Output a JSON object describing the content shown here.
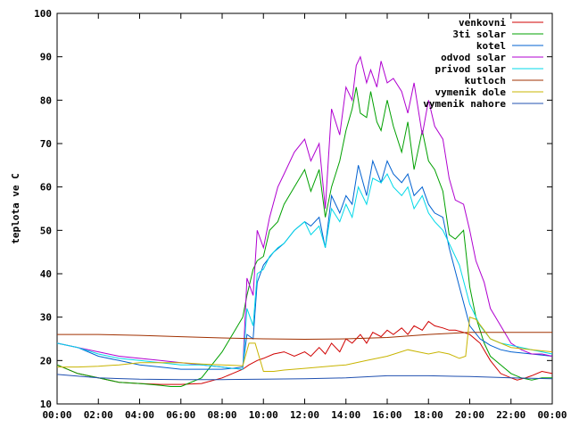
{
  "chart_data": {
    "type": "line",
    "ylabel": "teplota ve C",
    "xlabel": "",
    "ylim": [
      10,
      100
    ],
    "xlim": [
      0,
      24
    ],
    "x_ticks": [
      "00:00",
      "02:00",
      "04:00",
      "06:00",
      "08:00",
      "10:00",
      "12:00",
      "14:00",
      "16:00",
      "18:00",
      "20:00",
      "22:00",
      "00:00"
    ],
    "y_ticks": [
      10,
      20,
      30,
      40,
      50,
      60,
      70,
      80,
      90,
      100
    ],
    "grid": false,
    "legend_position": "top-right",
    "series": [
      {
        "name": "venkovni",
        "color": "#d00000",
        "x": [
          0,
          1,
          2,
          3,
          4,
          5,
          6,
          7,
          8,
          8.5,
          9,
          9.3,
          9.7,
          10,
          10.5,
          11,
          11.5,
          12,
          12.3,
          12.7,
          13,
          13.3,
          13.7,
          14,
          14.3,
          14.7,
          15,
          15.3,
          15.7,
          16,
          16.3,
          16.7,
          17,
          17.3,
          17.7,
          18,
          18.3,
          18.7,
          19,
          19.3,
          19.7,
          20,
          20.5,
          21,
          21.5,
          22,
          22.3,
          22.7,
          23,
          23.5,
          24
        ],
        "y": [
          19,
          17,
          16,
          15,
          14.7,
          14.5,
          14.5,
          14.7,
          16,
          17,
          18,
          19,
          20,
          20.5,
          21.5,
          22,
          21,
          22,
          21,
          23,
          21.5,
          24,
          22,
          25,
          24,
          26,
          24,
          26.5,
          25.5,
          27,
          26,
          27.5,
          26,
          28,
          27,
          29,
          28,
          27.5,
          27,
          27,
          26.5,
          26,
          24,
          20,
          17,
          16,
          15.5,
          16,
          16.5,
          17.5,
          17
        ]
      },
      {
        "name": "3ti solar",
        "color": "#00a000",
        "x": [
          0,
          1,
          2,
          3,
          4,
          5,
          5.5,
          6,
          7,
          8,
          8.5,
          9,
          9.2,
          9.5,
          9.7,
          10,
          10.3,
          10.7,
          11,
          11.5,
          12,
          12.3,
          12.7,
          13,
          13.3,
          13.7,
          14,
          14.3,
          14.5,
          14.7,
          15,
          15.2,
          15.5,
          15.7,
          16,
          16.3,
          16.7,
          17,
          17.3,
          17.7,
          18,
          18.3,
          18.7,
          19,
          19.3,
          19.7,
          20,
          20.3,
          20.7,
          21,
          21.5,
          22,
          22.5,
          23,
          23.5,
          24
        ],
        "y": [
          19,
          17,
          16,
          15,
          14.7,
          14.3,
          14,
          14,
          16,
          22,
          26,
          30,
          35,
          41,
          43,
          44,
          50,
          52,
          56,
          60,
          64,
          59,
          64,
          53,
          60,
          66,
          73,
          78,
          83,
          77,
          76,
          82,
          75,
          73,
          80,
          74,
          68,
          75,
          64,
          73,
          66,
          64,
          59,
          49,
          48,
          50,
          37,
          30,
          24,
          21,
          19,
          17,
          16,
          15.5,
          16,
          16
        ]
      },
      {
        "name": "kotel",
        "color": "#0060d0",
        "x": [
          0,
          1,
          2,
          3,
          4,
          5,
          6,
          7,
          8,
          8.5,
          9,
          9.2,
          9.5,
          9.7,
          10,
          10.5,
          11,
          11.5,
          12,
          12.3,
          12.7,
          13,
          13.3,
          13.7,
          14,
          14.3,
          14.6,
          15,
          15.3,
          15.7,
          16,
          16.3,
          16.7,
          17,
          17.3,
          17.7,
          18,
          18.3,
          18.7,
          19,
          19.5,
          20,
          20.5,
          21,
          21.5,
          22,
          23,
          24
        ],
        "y": [
          24,
          23,
          21,
          20,
          19,
          18.5,
          18,
          18,
          18,
          18.2,
          18.5,
          26,
          25,
          38,
          42,
          45,
          47,
          50,
          52,
          51,
          53,
          46,
          58,
          54,
          58,
          56,
          65,
          58,
          66,
          61,
          66,
          63,
          61,
          63,
          58,
          60,
          56,
          54,
          53,
          46,
          37,
          28,
          25,
          23.5,
          22.5,
          22,
          21.5,
          21
        ]
      },
      {
        "name": "odvod solar",
        "color": "#b000d0",
        "x": [
          0,
          1,
          2,
          3,
          4,
          5,
          6,
          7,
          8,
          8.5,
          9,
          9.2,
          9.5,
          9.7,
          10,
          10.3,
          10.7,
          11,
          11.5,
          12,
          12.3,
          12.7,
          13,
          13.3,
          13.7,
          14,
          14.3,
          14.5,
          14.7,
          15,
          15.2,
          15.5,
          15.7,
          16,
          16.3,
          16.7,
          17,
          17.3,
          17.7,
          18,
          18.3,
          18.7,
          19,
          19.3,
          19.7,
          20,
          20.3,
          20.7,
          21,
          21.5,
          22,
          22.5,
          23,
          23.5,
          24
        ],
        "y": [
          24,
          23,
          22,
          21,
          20.5,
          20,
          19.5,
          19,
          18.5,
          18.2,
          18,
          39,
          35,
          50,
          46,
          53,
          60,
          63,
          68,
          71,
          66,
          70,
          55,
          78,
          72,
          83,
          80,
          88,
          90,
          84,
          87,
          83,
          89,
          84,
          85,
          82,
          77,
          84,
          72,
          80,
          74,
          71,
          62,
          57,
          56,
          50,
          43,
          38,
          32,
          28,
          24,
          22.5,
          21.5,
          21.5,
          21
        ]
      },
      {
        "name": "privod solar",
        "color": "#00d8e8",
        "x": [
          0,
          1,
          2,
          3,
          4,
          5,
          6,
          7,
          8,
          8.5,
          9,
          9.2,
          9.5,
          9.7,
          10,
          10.3,
          10.7,
          11,
          11.5,
          12,
          12.3,
          12.7,
          13,
          13.3,
          13.7,
          14,
          14.3,
          14.6,
          15,
          15.3,
          15.7,
          16,
          16.3,
          16.7,
          17,
          17.3,
          17.7,
          18,
          18.3,
          18.7,
          19,
          19.5,
          20,
          20.5,
          21,
          21.5,
          22,
          22.5,
          23,
          23.5,
          24
        ],
        "y": [
          24,
          23,
          21.5,
          20.5,
          20,
          19.5,
          19,
          19,
          18.5,
          18.2,
          18,
          32,
          28,
          40,
          41,
          44,
          46,
          47,
          50,
          52,
          49,
          51,
          46,
          55,
          52,
          56,
          53,
          60,
          56,
          62,
          61,
          63,
          60,
          58,
          60,
          55,
          58,
          54,
          52,
          50,
          47,
          42,
          33,
          28,
          25,
          24,
          23.5,
          23,
          22.5,
          22,
          21.5
        ]
      },
      {
        "name": "kutloch",
        "color": "#a03000",
        "x": [
          0,
          2,
          4,
          6,
          8,
          10,
          12,
          14,
          16,
          18,
          20,
          22,
          24
        ],
        "y": [
          26,
          26,
          25.8,
          25.5,
          25.2,
          25,
          24.9,
          25,
          25.3,
          26,
          26.5,
          26.5,
          26.5
        ]
      },
      {
        "name": "vymenik dole",
        "color": "#c8b400",
        "x": [
          0,
          0.5,
          1,
          2,
          3,
          4,
          5,
          6,
          7,
          8,
          9,
          9.3,
          9.6,
          10,
          10.5,
          11,
          12,
          13,
          14,
          15,
          16,
          17,
          17.5,
          18,
          18.5,
          19,
          19.5,
          19.8,
          20,
          20.3,
          20.7,
          21,
          22,
          23,
          24
        ],
        "y": [
          18.5,
          18.5,
          18.5,
          18.7,
          19,
          19.5,
          19.5,
          19.5,
          19.2,
          19,
          18.8,
          24,
          24,
          17.5,
          17.5,
          17.8,
          18.2,
          18.6,
          19,
          20,
          21,
          22.5,
          22,
          21.5,
          22,
          21.5,
          20.5,
          21,
          30,
          29.5,
          27,
          25,
          23,
          22.5,
          22
        ]
      },
      {
        "name": "vymenik nahore",
        "color": "#2050b0",
        "x": [
          0,
          2,
          4,
          6,
          8,
          10,
          12,
          14,
          16,
          18,
          20,
          22,
          24
        ],
        "y": [
          16.8,
          16,
          15.7,
          15.6,
          15.6,
          15.7,
          15.8,
          16,
          16.5,
          16.5,
          16.3,
          16,
          15.8
        ]
      }
    ]
  }
}
